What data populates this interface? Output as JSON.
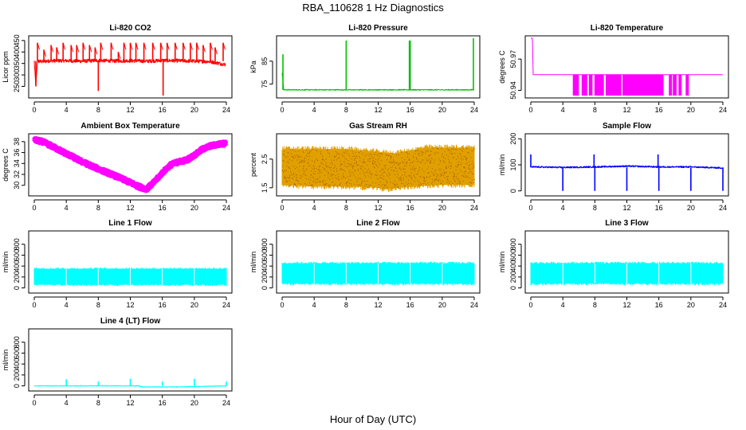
{
  "figure": {
    "title": "RBA_110628  1 Hz Diagnostics",
    "xlabel": "Hour of Day (UTC)"
  },
  "colors": {
    "red": "#ff0000",
    "green": "#00c000",
    "magenta": "#ff00ff",
    "orange": "#e0a000",
    "blue": "#0000ff",
    "cyan": "#00ffff"
  },
  "chart_data": [
    {
      "type": "line",
      "title": "Li-820 CO2",
      "ylabel": "Licor ppm",
      "color": "red",
      "xlim": [
        0,
        24
      ],
      "xticks": [
        0,
        4,
        8,
        12,
        16,
        20,
        24
      ],
      "ylim": [
        210,
        460
      ],
      "yticks": [
        250,
        300,
        350,
        400,
        450
      ],
      "baseline": 360,
      "noise": 8,
      "spikes": [
        [
          0.2,
          250
        ],
        [
          0.4,
          440
        ],
        [
          1.2,
          410
        ],
        [
          2.1,
          430
        ],
        [
          2.8,
          420
        ],
        [
          3.6,
          440
        ],
        [
          4.6,
          430
        ],
        [
          5.3,
          430
        ],
        [
          6.1,
          440
        ],
        [
          6.9,
          430
        ],
        [
          7.6,
          420
        ],
        [
          8.0,
          230
        ],
        [
          8.3,
          440
        ],
        [
          9.6,
          440
        ],
        [
          10.5,
          400
        ],
        [
          11.2,
          440
        ],
        [
          12.0,
          440
        ],
        [
          12.7,
          440
        ],
        [
          13.7,
          440
        ],
        [
          14.8,
          440
        ],
        [
          15.8,
          440
        ],
        [
          16.1,
          210
        ],
        [
          16.6,
          440
        ],
        [
          17.6,
          440
        ],
        [
          18.6,
          440
        ],
        [
          19.5,
          440
        ],
        [
          20.3,
          440
        ],
        [
          21.1,
          430
        ],
        [
          22.0,
          440
        ],
        [
          22.6,
          420
        ],
        [
          23.6,
          440
        ]
      ],
      "series": [
        {
          "x": [
            0,
            0.1,
            0.2,
            0.4,
            1,
            2,
            4,
            6,
            8,
            10,
            12,
            14,
            16,
            18,
            20,
            22,
            23.9
          ],
          "y": [
            360,
            300,
            250,
            360,
            358,
            362,
            362,
            360,
            363,
            361,
            362,
            360,
            363,
            362,
            360,
            358,
            345
          ]
        }
      ]
    },
    {
      "type": "line",
      "title": "Li-820 Pressure",
      "ylabel": "kPa",
      "color": "green",
      "xlim": [
        0,
        24
      ],
      "xticks": [
        0,
        4,
        8,
        12,
        16,
        20,
        24
      ],
      "ylim": [
        70,
        95
      ],
      "yticks": [
        75,
        85
      ],
      "baseline": 72.5,
      "noise": 0.2,
      "spikes": [
        [
          0.1,
          88
        ],
        [
          8.0,
          94
        ],
        [
          15.9,
          94
        ],
        [
          16.0,
          94
        ],
        [
          23.9,
          95
        ]
      ],
      "series": [
        {
          "x": [
            0,
            0.2,
            24
          ],
          "y": [
            80,
            72.5,
            72.5
          ]
        }
      ]
    },
    {
      "type": "line",
      "title": "Li-820 Temperature",
      "ylabel": "degrees C",
      "color": "magenta",
      "xlim": [
        0,
        24
      ],
      "xticks": [
        0,
        4,
        8,
        12,
        16,
        20,
        24
      ],
      "ylim": [
        50.935,
        50.99
      ],
      "yticks": [
        50.94,
        50.97
      ],
      "series": [
        {
          "x": [
            0,
            0.2,
            0.3,
            24
          ],
          "y": [
            50.99,
            50.99,
            50.955,
            50.955
          ]
        }
      ],
      "band": {
        "ranges": [
          [
            5.3,
            6.0
          ],
          [
            6.4,
            7.0
          ],
          [
            7.3,
            7.7
          ],
          [
            8.0,
            9.1
          ],
          [
            9.4,
            11.3
          ],
          [
            11.5,
            16.6
          ],
          [
            17.3,
            17.6
          ],
          [
            17.8,
            18.2
          ],
          [
            18.5,
            18.8
          ],
          [
            19.4,
            19.7
          ]
        ],
        "low": 50.935,
        "high": 50.955
      }
    },
    {
      "type": "line",
      "title": "Ambient Box Temperature",
      "ylabel": "degrees C",
      "color": "magenta",
      "xlim": [
        0,
        24
      ],
      "xticks": [
        0,
        4,
        8,
        12,
        16,
        20,
        24
      ],
      "ylim": [
        28.5,
        39
      ],
      "yticks": [
        30,
        32,
        34,
        36,
        38
      ],
      "noise": 0.35,
      "series": [
        {
          "x": [
            0,
            1,
            2,
            4,
            6,
            8,
            10,
            12,
            13,
            14,
            15,
            16,
            17,
            18,
            19,
            20,
            21,
            22,
            23,
            24
          ],
          "y": [
            38.3,
            38.0,
            37.3,
            35.8,
            34.3,
            33.0,
            31.8,
            30.5,
            29.8,
            29.3,
            30.6,
            32.3,
            33.7,
            34.3,
            34.6,
            35.5,
            36.6,
            37.2,
            37.5,
            37.7
          ]
        }
      ]
    },
    {
      "type": "line",
      "title": "Gas Stream RH",
      "ylabel": "percent",
      "color": "orange",
      "xlim": [
        0,
        24
      ],
      "xticks": [
        0,
        4,
        8,
        12,
        16,
        20,
        24
      ],
      "ylim": [
        1.3,
        3.3
      ],
      "yticks": [
        1.5,
        2.5
      ],
      "series": [
        {
          "x": [
            0,
            4,
            8,
            12,
            14,
            16,
            20,
            24
          ],
          "y": [
            2.35,
            2.3,
            2.3,
            2.2,
            2.1,
            2.2,
            2.3,
            2.3
          ]
        }
      ],
      "envelope": {
        "top": [
          [
            0,
            2.85
          ],
          [
            4,
            2.85
          ],
          [
            8,
            2.85
          ],
          [
            12,
            2.75
          ],
          [
            14,
            2.7
          ],
          [
            16,
            2.8
          ],
          [
            18,
            2.9
          ],
          [
            20,
            2.9
          ],
          [
            24,
            2.9
          ]
        ],
        "bottom": [
          [
            0,
            1.6
          ],
          [
            4,
            1.55
          ],
          [
            8,
            1.55
          ],
          [
            12,
            1.5
          ],
          [
            13,
            1.45
          ],
          [
            16,
            1.55
          ],
          [
            20,
            1.6
          ],
          [
            24,
            1.6
          ]
        ]
      }
    },
    {
      "type": "line",
      "title": "Sample Flow",
      "ylabel": "ml/min",
      "color": "blue",
      "xlim": [
        0,
        24
      ],
      "xticks": [
        0,
        4,
        8,
        12,
        16,
        20,
        24
      ],
      "ylim": [
        -10,
        210
      ],
      "yticks": [
        0,
        100,
        200
      ],
      "baseline": 90,
      "noise": 3,
      "spikes": [
        [
          0.0,
          140
        ],
        [
          4.0,
          0
        ],
        [
          7.9,
          140
        ],
        [
          8.0,
          0
        ],
        [
          12.0,
          0
        ],
        [
          15.9,
          140
        ],
        [
          16.0,
          0
        ],
        [
          20.0,
          0
        ],
        [
          24.0,
          0
        ]
      ],
      "series": [
        {
          "x": [
            0,
            4,
            8,
            12,
            16,
            20,
            24
          ],
          "y": [
            92,
            90,
            92,
            95,
            92,
            92,
            88
          ]
        }
      ]
    },
    {
      "type": "line",
      "title": "Line 1 Flow",
      "ylabel": "ml/min",
      "color": "cyan",
      "xlim": [
        0,
        24
      ],
      "xticks": [
        0,
        4,
        8,
        12,
        16,
        20,
        24
      ],
      "ylim": [
        -50,
        1000
      ],
      "yticks": [
        0,
        200,
        400,
        600,
        800
      ],
      "series": [
        {
          "x": [
            0,
            24
          ],
          "y": [
            220,
            220
          ]
        }
      ],
      "envelope": {
        "top": [
          [
            0,
            350
          ],
          [
            24,
            350
          ]
        ],
        "bottom": [
          [
            0,
            60
          ],
          [
            24,
            60
          ]
        ]
      }
    },
    {
      "type": "line",
      "title": "Line 2 Flow",
      "ylabel": "ml/min",
      "color": "cyan",
      "xlim": [
        0,
        24
      ],
      "xticks": [
        0,
        4,
        8,
        12,
        16,
        20,
        24
      ],
      "ylim": [
        -50,
        1000
      ],
      "yticks": [
        0,
        200,
        400,
        600,
        800
      ],
      "series": [
        {
          "x": [
            0,
            24
          ],
          "y": [
            280,
            280
          ]
        }
      ],
      "envelope": {
        "top": [
          [
            0,
            450
          ],
          [
            24,
            450
          ]
        ],
        "bottom": [
          [
            0,
            80
          ],
          [
            24,
            80
          ]
        ]
      }
    },
    {
      "type": "line",
      "title": "Line 3 Flow",
      "ylabel": "ml/min",
      "color": "cyan",
      "xlim": [
        0,
        24
      ],
      "xticks": [
        0,
        4,
        8,
        12,
        16,
        20,
        24
      ],
      "ylim": [
        -50,
        1000
      ],
      "yticks": [
        0,
        200,
        400,
        600,
        800
      ],
      "series": [
        {
          "x": [
            0,
            24
          ],
          "y": [
            280,
            280
          ]
        }
      ],
      "envelope": {
        "top": [
          [
            0,
            450
          ],
          [
            24,
            450
          ]
        ],
        "bottom": [
          [
            0,
            80
          ],
          [
            24,
            80
          ]
        ]
      }
    },
    {
      "type": "line",
      "title": "Line 4 (LT) Flow",
      "ylabel": "ml/min",
      "color": "cyan",
      "xlim": [
        0,
        24
      ],
      "xticks": [
        0,
        4,
        8,
        12,
        16,
        20,
        24
      ],
      "ylim": [
        -50,
        1000
      ],
      "yticks": [
        0,
        200,
        400,
        600,
        800
      ],
      "baseline": 0,
      "noise": 6,
      "spikes": [
        [
          4.0,
          120
        ],
        [
          8.0,
          80
        ],
        [
          12.0,
          130
        ],
        [
          16.0,
          80
        ],
        [
          20.0,
          130
        ],
        [
          24.0,
          80
        ]
      ],
      "series": [
        {
          "x": [
            0,
            13,
            13.5,
            18,
            24
          ],
          "y": [
            0,
            0,
            -20,
            -20,
            0
          ]
        }
      ]
    }
  ]
}
